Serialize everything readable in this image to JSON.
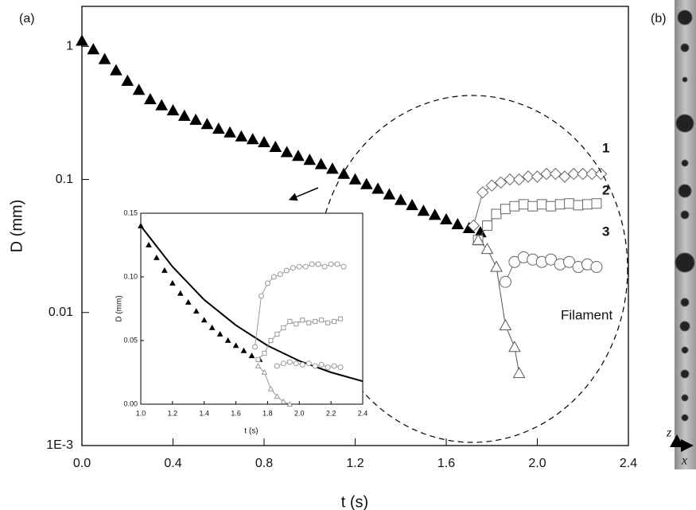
{
  "chart_data": [
    {
      "type": "scatter",
      "panel_label": "(a)",
      "xlabel": "t (s)",
      "ylabel": "D (mm)",
      "xlim": [
        0,
        2.4
      ],
      "ylim": [
        0.001,
        2
      ],
      "yscale": "log",
      "xticks": [
        {
          "value": 0,
          "label": "0.0"
        },
        0.4,
        0.8,
        1.2,
        1.6,
        {
          "value": 2,
          "label": "2.0"
        },
        2.4
      ],
      "yticks": [
        {
          "value": 0.001,
          "label": "1E-3"
        },
        0.01,
        0.1,
        1
      ],
      "annotations": [
        "1",
        "2",
        "3",
        "Filament"
      ],
      "series": [
        {
          "marker": "triangle",
          "filled": true,
          "connect": false,
          "color": "#000000",
          "x": [
            0,
            0.05,
            0.1,
            0.15,
            0.2,
            0.25,
            0.3,
            0.35,
            0.4,
            0.45,
            0.5,
            0.55,
            0.6,
            0.65,
            0.7,
            0.75,
            0.8,
            0.85,
            0.9,
            0.95,
            1.0,
            1.05,
            1.1,
            1.15,
            1.2,
            1.25,
            1.3,
            1.35,
            1.4,
            1.45,
            1.5,
            1.55,
            1.6,
            1.65,
            1.7,
            1.75
          ],
          "values": [
            1.1,
            0.95,
            0.8,
            0.66,
            0.55,
            0.47,
            0.4,
            0.36,
            0.33,
            0.3,
            0.28,
            0.26,
            0.24,
            0.225,
            0.21,
            0.2,
            0.19,
            0.175,
            0.16,
            0.15,
            0.14,
            0.13,
            0.12,
            0.11,
            0.1,
            0.092,
            0.085,
            0.077,
            0.07,
            0.064,
            0.058,
            0.054,
            0.05,
            0.046,
            0.043,
            0.04
          ]
        },
        {
          "marker": "diamond",
          "filled": false,
          "connect": true,
          "color": "#666666",
          "x": [
            1.72,
            1.76,
            1.8,
            1.84,
            1.88,
            1.92,
            1.96,
            2.0,
            2.04,
            2.08,
            2.12,
            2.16,
            2.2,
            2.24,
            2.28
          ],
          "values": [
            0.045,
            0.08,
            0.09,
            0.095,
            0.1,
            0.1,
            0.105,
            0.105,
            0.11,
            0.11,
            0.105,
            0.11,
            0.11,
            0.11,
            0.11
          ]
        },
        {
          "marker": "square",
          "filled": false,
          "connect": true,
          "color": "#666666",
          "x": [
            1.74,
            1.78,
            1.82,
            1.86,
            1.9,
            1.94,
            1.98,
            2.02,
            2.06,
            2.1,
            2.14,
            2.18,
            2.22,
            2.26
          ],
          "values": [
            0.035,
            0.045,
            0.055,
            0.06,
            0.063,
            0.065,
            0.063,
            0.065,
            0.063,
            0.065,
            0.066,
            0.064,
            0.065,
            0.066
          ]
        },
        {
          "marker": "circle",
          "filled": false,
          "connect": true,
          "color": "#666666",
          "x": [
            1.86,
            1.9,
            1.94,
            1.98,
            2.02,
            2.06,
            2.1,
            2.14,
            2.18,
            2.22,
            2.26
          ],
          "values": [
            0.017,
            0.024,
            0.026,
            0.025,
            0.024,
            0.025,
            0.023,
            0.024,
            0.022,
            0.023,
            0.022
          ]
        },
        {
          "marker": "triangle",
          "filled": false,
          "connect": true,
          "color": "#555555",
          "x": [
            1.74,
            1.78,
            1.82,
            1.86,
            1.9,
            1.92
          ],
          "values": [
            0.035,
            0.03,
            0.022,
            0.008,
            0.0055,
            0.0035
          ]
        }
      ]
    },
    {
      "type": "scatter",
      "xlabel": "t (s)",
      "ylabel": "D (mm)",
      "xlim": [
        1.0,
        2.4
      ],
      "ylim": [
        0,
        0.15
      ],
      "yscale": "linear",
      "xticks": [
        {
          "value": 1.0,
          "label": "1.0"
        },
        1.2,
        1.4,
        1.6,
        1.8,
        {
          "value": 2.0,
          "label": "2.0"
        },
        2.2,
        2.4
      ],
      "yticks": [
        {
          "value": 0,
          "label": "0.00"
        },
        0.05,
        {
          "value": 0.1,
          "label": "0.10"
        },
        0.15
      ],
      "series": [
        {
          "marker": "triangle",
          "filled": true,
          "connect": false,
          "color": "#000000",
          "x": [
            1.0,
            1.05,
            1.1,
            1.15,
            1.2,
            1.25,
            1.3,
            1.35,
            1.4,
            1.45,
            1.5,
            1.55,
            1.6,
            1.65,
            1.7,
            1.75
          ],
          "values": [
            0.14,
            0.125,
            0.115,
            0.105,
            0.095,
            0.087,
            0.08,
            0.073,
            0.066,
            0.06,
            0.055,
            0.05,
            0.046,
            0.042,
            0.038,
            0.035
          ]
        },
        {
          "marker": "none",
          "filled": false,
          "connect": true,
          "color": "#000000",
          "x": [
            1.0,
            1.2,
            1.4,
            1.6,
            1.8,
            2.0,
            2.2,
            2.4
          ],
          "values": [
            0.14,
            0.108,
            0.082,
            0.062,
            0.046,
            0.034,
            0.025,
            0.018
          ]
        },
        {
          "marker": "circle",
          "filled": false,
          "connect": true,
          "color": "#999999",
          "x": [
            1.72,
            1.76,
            1.8,
            1.84,
            1.88,
            1.92,
            1.96,
            2.0,
            2.04,
            2.08,
            2.12,
            2.16,
            2.2,
            2.24,
            2.28
          ],
          "values": [
            0.045,
            0.085,
            0.095,
            0.1,
            0.102,
            0.105,
            0.107,
            0.108,
            0.108,
            0.11,
            0.11,
            0.108,
            0.11,
            0.11,
            0.108
          ]
        },
        {
          "marker": "square",
          "filled": false,
          "connect": true,
          "color": "#999999",
          "x": [
            1.74,
            1.78,
            1.82,
            1.86,
            1.9,
            1.94,
            1.98,
            2.02,
            2.06,
            2.1,
            2.14,
            2.18,
            2.22,
            2.26
          ],
          "values": [
            0.035,
            0.04,
            0.05,
            0.055,
            0.06,
            0.065,
            0.063,
            0.066,
            0.064,
            0.065,
            0.066,
            0.064,
            0.065,
            0.067
          ]
        },
        {
          "marker": "circle",
          "filled": false,
          "connect": true,
          "color": "#999999",
          "x": [
            1.86,
            1.9,
            1.94,
            1.98,
            2.02,
            2.06,
            2.1,
            2.14,
            2.18,
            2.22,
            2.26
          ],
          "values": [
            0.03,
            0.032,
            0.033,
            0.032,
            0.031,
            0.032,
            0.03,
            0.031,
            0.029,
            0.03,
            0.029
          ]
        },
        {
          "marker": "triangle",
          "filled": false,
          "connect": true,
          "color": "#999999",
          "x": [
            1.74,
            1.78,
            1.82,
            1.86,
            1.9,
            1.94
          ],
          "values": [
            0.03,
            0.025,
            0.012,
            0.006,
            0.002,
            0
          ]
        }
      ]
    }
  ],
  "panel_b": {
    "label": "(b)",
    "axis_labels": [
      "z",
      "x"
    ]
  }
}
